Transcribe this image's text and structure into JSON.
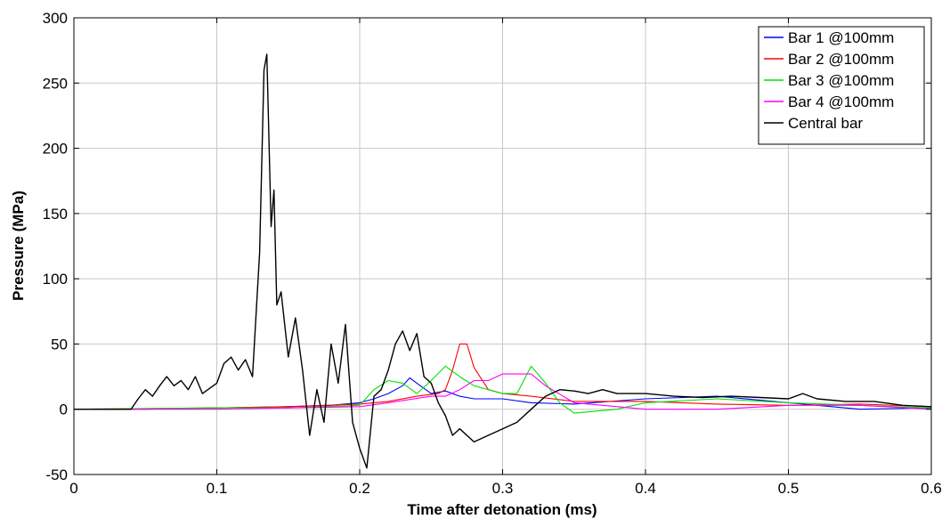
{
  "chart_data": {
    "type": "line",
    "title": "",
    "xlabel": "Time after detonation (ms)",
    "ylabel": "Pressure (MPa)",
    "xlim": [
      0,
      0.6
    ],
    "ylim": [
      -50,
      300
    ],
    "xticks": [
      0,
      0.1,
      0.2,
      0.3,
      0.4,
      0.5,
      0.6
    ],
    "xtick_labels": [
      "0",
      "0.1",
      "0.2",
      "0.3",
      "0.4",
      "0.5",
      "0.6"
    ],
    "yticks": [
      -50,
      0,
      50,
      100,
      150,
      200,
      250,
      300
    ],
    "ytick_labels": [
      "-50",
      "0",
      "50",
      "100",
      "150",
      "200",
      "250",
      "300"
    ],
    "grid": true,
    "legend_position": "top-right",
    "series": [
      {
        "name": "Bar 1 @100mm",
        "color": "#0000ff",
        "x": [
          0,
          0.05,
          0.1,
          0.15,
          0.18,
          0.2,
          0.21,
          0.22,
          0.23,
          0.235,
          0.24,
          0.25,
          0.26,
          0.27,
          0.28,
          0.3,
          0.32,
          0.35,
          0.4,
          0.45,
          0.5,
          0.55,
          0.6
        ],
        "y": [
          0,
          0,
          1,
          2,
          3,
          5,
          8,
          12,
          18,
          24,
          20,
          12,
          14,
          10,
          8,
          8,
          5,
          4,
          8,
          10,
          5,
          0,
          1
        ]
      },
      {
        "name": "Bar 2 @100mm",
        "color": "#ff0000",
        "x": [
          0,
          0.1,
          0.15,
          0.2,
          0.22,
          0.24,
          0.255,
          0.26,
          0.265,
          0.27,
          0.275,
          0.28,
          0.29,
          0.3,
          0.32,
          0.35,
          0.4,
          0.45,
          0.5,
          0.55,
          0.6
        ],
        "y": [
          0,
          1,
          2,
          4,
          6,
          10,
          12,
          15,
          30,
          50,
          50,
          32,
          15,
          12,
          10,
          6,
          6,
          4,
          3,
          4,
          2
        ]
      },
      {
        "name": "Bar 3 @100mm",
        "color": "#00e000",
        "x": [
          0,
          0.1,
          0.15,
          0.2,
          0.21,
          0.22,
          0.23,
          0.24,
          0.25,
          0.26,
          0.27,
          0.28,
          0.3,
          0.31,
          0.32,
          0.33,
          0.34,
          0.35,
          0.38,
          0.4,
          0.45,
          0.5,
          0.55,
          0.6
        ],
        "y": [
          0,
          1,
          1,
          3,
          15,
          22,
          20,
          12,
          22,
          33,
          25,
          18,
          12,
          12,
          33,
          20,
          5,
          -3,
          0,
          5,
          8,
          5,
          3,
          1
        ]
      },
      {
        "name": "Bar 4 @100mm",
        "color": "#ff00ff",
        "x": [
          0,
          0.1,
          0.15,
          0.2,
          0.22,
          0.25,
          0.26,
          0.27,
          0.28,
          0.29,
          0.3,
          0.31,
          0.32,
          0.33,
          0.35,
          0.4,
          0.45,
          0.5,
          0.55,
          0.6
        ],
        "y": [
          0,
          0,
          1,
          2,
          5,
          10,
          10,
          15,
          22,
          22,
          27,
          27,
          27,
          18,
          5,
          0,
          0,
          3,
          3,
          0
        ]
      },
      {
        "name": "Central bar",
        "color": "#000000",
        "x": [
          0,
          0.04,
          0.045,
          0.05,
          0.055,
          0.06,
          0.065,
          0.07,
          0.075,
          0.08,
          0.085,
          0.09,
          0.1,
          0.105,
          0.11,
          0.115,
          0.12,
          0.125,
          0.13,
          0.133,
          0.135,
          0.138,
          0.14,
          0.142,
          0.145,
          0.15,
          0.155,
          0.16,
          0.165,
          0.17,
          0.175,
          0.18,
          0.185,
          0.19,
          0.195,
          0.2,
          0.205,
          0.21,
          0.215,
          0.22,
          0.225,
          0.23,
          0.235,
          0.24,
          0.245,
          0.25,
          0.255,
          0.26,
          0.265,
          0.27,
          0.28,
          0.29,
          0.3,
          0.31,
          0.32,
          0.33,
          0.34,
          0.35,
          0.36,
          0.37,
          0.38,
          0.39,
          0.4,
          0.42,
          0.44,
          0.46,
          0.48,
          0.5,
          0.51,
          0.52,
          0.54,
          0.56,
          0.58,
          0.6
        ],
        "y": [
          0,
          0,
          8,
          15,
          10,
          18,
          25,
          18,
          22,
          15,
          25,
          12,
          20,
          35,
          40,
          30,
          38,
          25,
          120,
          260,
          272,
          140,
          168,
          80,
          90,
          40,
          70,
          30,
          -20,
          15,
          -10,
          50,
          20,
          65,
          -10,
          -30,
          -45,
          10,
          15,
          30,
          50,
          60,
          45,
          58,
          25,
          20,
          5,
          -5,
          -20,
          -15,
          -25,
          -20,
          -15,
          -10,
          0,
          10,
          15,
          14,
          12,
          15,
          12,
          12,
          12,
          10,
          9,
          10,
          9,
          8,
          12,
          8,
          6,
          6,
          3,
          2
        ]
      }
    ]
  }
}
